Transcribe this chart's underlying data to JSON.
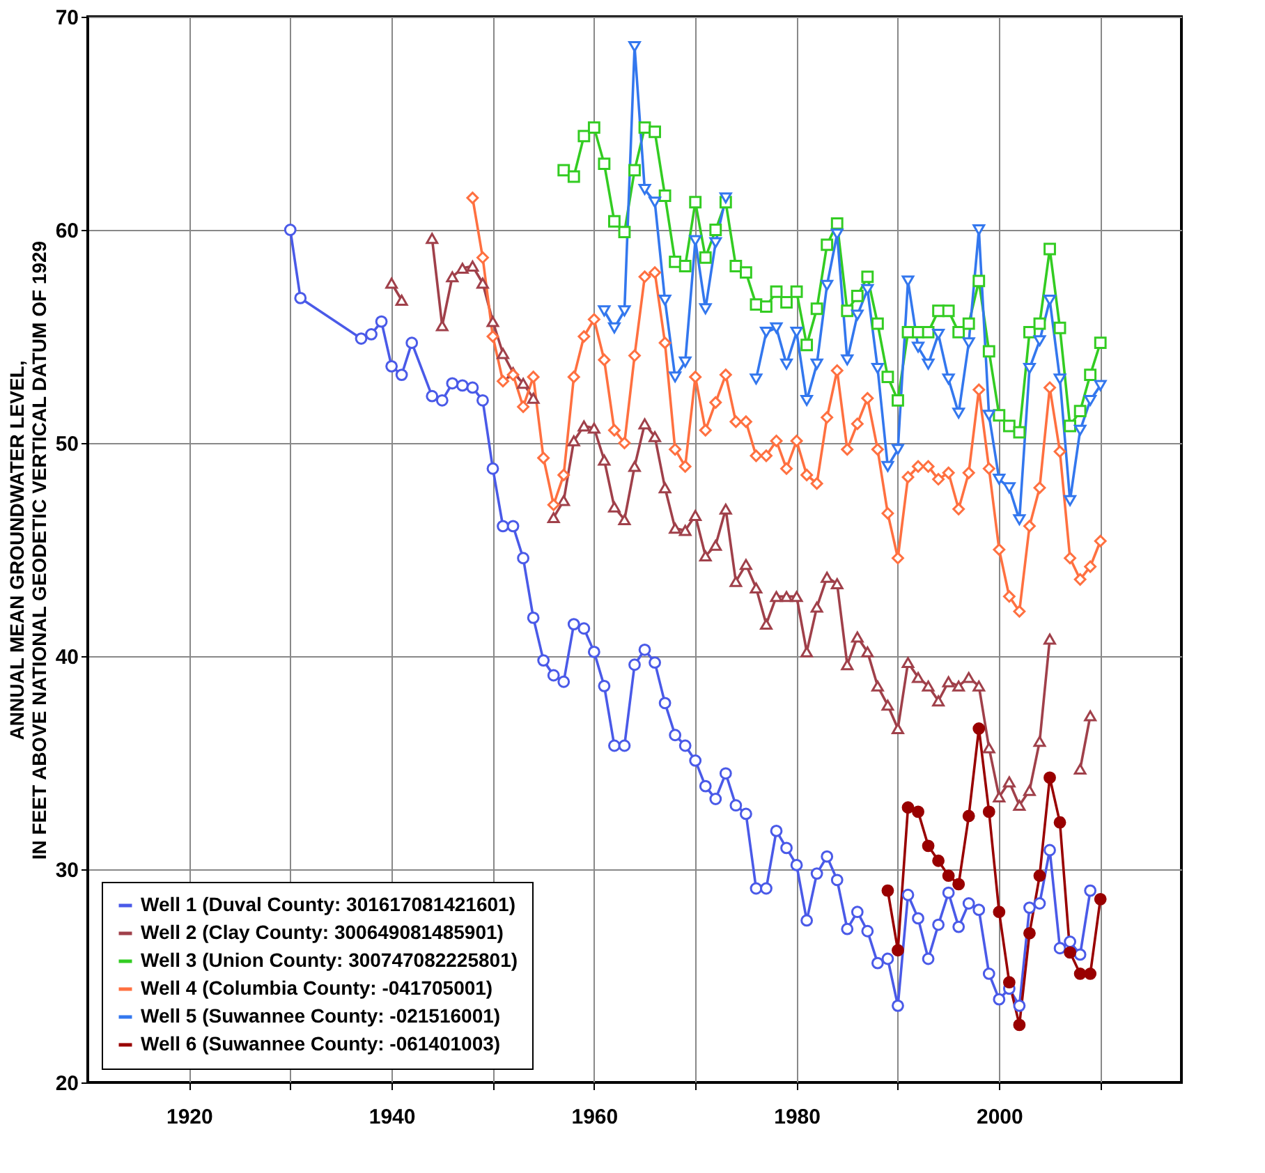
{
  "chart_data": {
    "type": "line",
    "ylabel": "ANNUAL MEAN GROUNDWATER LEVEL,\nIN FEET ABOVE NATIONAL GEODETIC VERTICAL DATUM OF 1929",
    "xlim": [
      1910,
      2018
    ],
    "ylim": [
      20,
      70
    ],
    "xticks": [
      1920,
      {
        "value": 1930,
        "label": null
      },
      1940,
      {
        "value": 1950,
        "label": null
      },
      1960,
      {
        "value": 1970,
        "label": null
      },
      1980,
      {
        "value": 1990,
        "label": null
      },
      2000,
      {
        "value": 2010,
        "label": null
      }
    ],
    "yticks": [
      20,
      30,
      40,
      50,
      60,
      70
    ],
    "grid": true,
    "legend": "bottom left",
    "line_style": "solid",
    "series": [
      {
        "name": "Well 1 (Duval County: 301617081421601)",
        "color": "#4a5ae8",
        "marker": "circle",
        "x": [
          1930,
          1931,
          1937,
          1938,
          1939,
          1940,
          1941,
          1942,
          1944,
          1945,
          1946,
          1947,
          1948,
          1949,
          1950,
          1951,
          1952,
          1953,
          1954,
          1955,
          1956,
          1957,
          1958,
          1959,
          1960,
          1961,
          1962,
          1963,
          1964,
          1965,
          1966,
          1967,
          1968,
          1969,
          1970,
          1971,
          1972,
          1973,
          1974,
          1975,
          1976,
          1977,
          1978,
          1979,
          1980,
          1981,
          1982,
          1983,
          1984,
          1985,
          1986,
          1987,
          1988,
          1989,
          1990,
          1991,
          1992,
          1993,
          1994,
          1995,
          1996,
          1997,
          1998,
          1999,
          2000,
          2001,
          2002,
          2003,
          2004,
          2005,
          2006,
          2007,
          2008,
          2009
        ],
        "values": [
          60.0,
          56.8,
          54.9,
          55.1,
          55.7,
          53.6,
          53.2,
          54.7,
          52.2,
          52.0,
          52.8,
          52.7,
          52.6,
          52.0,
          48.8,
          46.1,
          46.1,
          44.6,
          41.8,
          39.8,
          39.1,
          38.8,
          41.5,
          41.3,
          40.2,
          38.6,
          35.8,
          35.8,
          39.6,
          40.3,
          39.7,
          37.8,
          36.3,
          35.8,
          35.1,
          33.9,
          33.3,
          34.5,
          33.0,
          32.6,
          29.1,
          29.1,
          31.8,
          31.0,
          30.2,
          27.6,
          29.8,
          30.6,
          29.5,
          27.2,
          28.0,
          27.1,
          25.6,
          25.8,
          23.6,
          28.8,
          27.7,
          25.8,
          27.4,
          28.9,
          27.3,
          28.4,
          28.1,
          25.1,
          23.9,
          24.4,
          23.6,
          28.2,
          28.4,
          30.9,
          26.3,
          26.6,
          26.0,
          29.0
        ]
      },
      {
        "name": "Well 2 (Clay County: 300649081485901)",
        "color": "#a0404a",
        "marker": "triangle",
        "x": [
          1940,
          1941,
          1942,
          1943,
          1944,
          1945,
          1946,
          1947,
          1948,
          1949,
          1950,
          1951,
          1952,
          1953,
          1954,
          1955,
          1956,
          1957,
          1958,
          1959,
          1960,
          1961,
          1962,
          1963,
          1964,
          1965,
          1966,
          1967,
          1968,
          1969,
          1970,
          1971,
          1972,
          1973,
          1974,
          1975,
          1976,
          1977,
          1978,
          1979,
          1980,
          1981,
          1982,
          1983,
          1984,
          1985,
          1986,
          1987,
          1988,
          1989,
          1990,
          1991,
          1992,
          1993,
          1994,
          1995,
          1996,
          1997,
          1998,
          1999,
          2000,
          2001,
          2002,
          2003,
          2004,
          2005,
          2006,
          2007,
          2008,
          2009
        ],
        "values": [
          57.5,
          56.7,
          null,
          null,
          59.6,
          55.5,
          57.8,
          58.2,
          58.3,
          57.5,
          55.7,
          54.2,
          53.3,
          52.8,
          52.1,
          null,
          46.5,
          47.3,
          50.1,
          50.8,
          50.7,
          49.2,
          47.0,
          46.4,
          48.9,
          50.9,
          50.3,
          47.9,
          46.0,
          45.9,
          46.6,
          44.7,
          45.2,
          46.9,
          43.5,
          44.3,
          43.2,
          41.5,
          42.8,
          42.8,
          42.8,
          40.2,
          42.3,
          43.7,
          43.4,
          39.6,
          40.9,
          40.2,
          38.6,
          37.7,
          36.6,
          39.7,
          39.0,
          38.6,
          37.9,
          38.8,
          38.6,
          39.0,
          38.6,
          35.7,
          33.4,
          34.1,
          33.0,
          33.7,
          36.0,
          40.8,
          null,
          null,
          34.7,
          37.2
        ]
      },
      {
        "name": "Well 3 (Union County: 300747082225801)",
        "color": "#33cc22",
        "marker": "square",
        "x": [
          1957,
          1958,
          1959,
          1960,
          1961,
          1962,
          1963,
          1964,
          1965,
          1966,
          1967,
          1968,
          1969,
          1970,
          1971,
          1972,
          1973,
          1974,
          1975,
          1976,
          1977,
          1978,
          1979,
          1980,
          1981,
          1982,
          1983,
          1984,
          1985,
          1986,
          1987,
          1988,
          1989,
          1990,
          1991,
          1992,
          1993,
          1994,
          1995,
          1996,
          1997,
          1998,
          1999,
          2000,
          2001,
          2002,
          2003,
          2004,
          2005,
          2006,
          2007,
          2008,
          2009,
          2010
        ],
        "values": [
          62.8,
          62.5,
          64.4,
          64.8,
          63.1,
          60.4,
          59.9,
          62.8,
          64.8,
          64.6,
          61.6,
          58.5,
          58.3,
          61.3,
          58.7,
          60.0,
          61.3,
          58.3,
          58.0,
          56.5,
          56.4,
          57.1,
          56.6,
          57.1,
          54.6,
          56.3,
          59.3,
          60.3,
          56.2,
          56.9,
          57.8,
          55.6,
          53.1,
          52.0,
          55.2,
          55.2,
          55.2,
          56.2,
          56.2,
          55.2,
          55.6,
          57.6,
          54.3,
          51.3,
          50.8,
          50.5,
          55.2,
          55.6,
          59.1,
          55.4,
          50.8,
          51.5,
          53.2,
          54.7
        ]
      },
      {
        "name": "Well 4 (Columbia County: -041705001)",
        "color": "#ff7040",
        "marker": "diamond",
        "x": [
          1948,
          1949,
          1950,
          1951,
          1952,
          1953,
          1954,
          1955,
          1956,
          1957,
          1958,
          1959,
          1960,
          1961,
          1962,
          1963,
          1964,
          1965,
          1966,
          1967,
          1968,
          1969,
          1970,
          1971,
          1972,
          1973,
          1974,
          1975,
          1976,
          1977,
          1978,
          1979,
          1980,
          1981,
          1982,
          1983,
          1984,
          1985,
          1986,
          1987,
          1988,
          1989,
          1990,
          1991,
          1992,
          1993,
          1994,
          1995,
          1996,
          1997,
          1998,
          1999,
          2000,
          2001,
          2002,
          2003,
          2004,
          2005,
          2006,
          2007,
          2008,
          2009,
          2010
        ],
        "values": [
          61.5,
          58.7,
          55.0,
          52.9,
          53.2,
          51.7,
          53.1,
          49.3,
          47.1,
          48.5,
          53.1,
          55.0,
          55.8,
          53.9,
          50.6,
          50.0,
          54.1,
          57.8,
          58.0,
          54.7,
          49.7,
          48.9,
          53.1,
          50.6,
          51.9,
          53.2,
          51.0,
          51.0,
          49.4,
          49.4,
          50.1,
          48.8,
          50.1,
          48.5,
          48.1,
          51.2,
          53.4,
          49.7,
          50.9,
          52.1,
          49.7,
          46.7,
          44.6,
          48.4,
          48.9,
          48.9,
          48.3,
          48.6,
          46.9,
          48.6,
          52.5,
          48.8,
          45.0,
          42.8,
          42.1,
          46.1,
          47.9,
          52.6,
          49.6,
          44.6,
          43.6,
          44.2,
          45.4
        ]
      },
      {
        "name": "Well 5 (Suwannee County: -021516001)",
        "color": "#3377ee",
        "marker": "triangle-down",
        "x": [
          1961,
          1962,
          1963,
          1964,
          1965,
          1966,
          1967,
          1968,
          1969,
          1970,
          1971,
          1972,
          1973,
          1974,
          1975,
          1976,
          1977,
          1978,
          1979,
          1980,
          1981,
          1982,
          1983,
          1984,
          1985,
          1986,
          1987,
          1988,
          1989,
          1990,
          1991,
          1992,
          1993,
          1994,
          1995,
          1996,
          1997,
          1998,
          1999,
          2000,
          2001,
          2002,
          2003,
          2004,
          2005,
          2006,
          2007,
          2008,
          2009,
          2010
        ],
        "values": [
          56.2,
          55.4,
          56.2,
          68.6,
          61.9,
          61.3,
          56.7,
          53.1,
          53.8,
          59.5,
          56.3,
          59.4,
          61.5,
          null,
          null,
          53.0,
          55.2,
          55.4,
          53.7,
          55.2,
          52.0,
          53.7,
          57.4,
          59.8,
          53.9,
          56.0,
          57.2,
          53.5,
          48.9,
          49.7,
          57.6,
          54.5,
          53.7,
          55.1,
          53.0,
          51.4,
          54.7,
          60.0,
          51.3,
          48.3,
          47.9,
          46.4,
          53.5,
          54.8,
          56.7,
          53.0,
          47.3,
          50.6,
          52.0,
          52.7
        ]
      },
      {
        "name": "Well 6 (Suwannee County: -061401003)",
        "color": "#990000",
        "marker": "filled-circle",
        "x": [
          1989,
          1990,
          1991,
          1992,
          1993,
          1994,
          1995,
          1996,
          1997,
          1998,
          1999,
          2000,
          2001,
          2002,
          2003,
          2004,
          2005,
          2006,
          2007,
          2008,
          2009,
          2010
        ],
        "values": [
          29.0,
          26.2,
          32.9,
          32.7,
          31.1,
          30.4,
          29.7,
          29.3,
          32.5,
          36.6,
          32.7,
          28.0,
          24.7,
          22.7,
          27.0,
          29.7,
          34.3,
          32.2,
          26.1,
          25.1,
          25.1,
          28.6
        ]
      }
    ]
  }
}
